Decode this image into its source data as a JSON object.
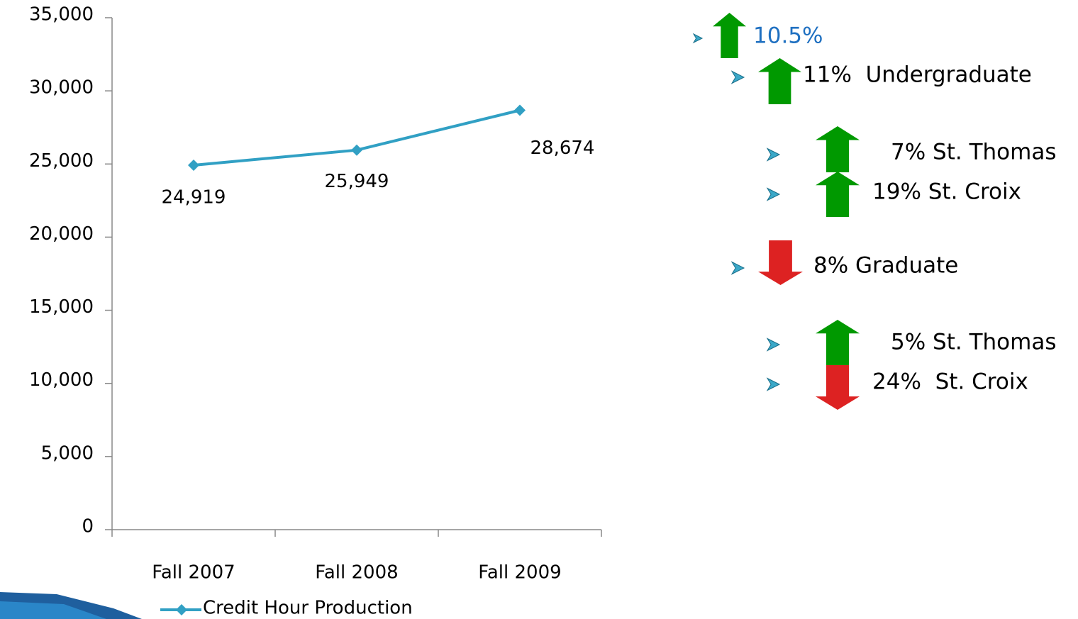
{
  "chart_data": {
    "type": "line",
    "categories": [
      "Fall 2007",
      "Fall 2008",
      "Fall 2009"
    ],
    "series": [
      {
        "name": "Credit Hour Production",
        "color": "#31a0c4",
        "values": [
          24919,
          25949,
          28674
        ],
        "value_labels": [
          "24,919",
          "25,949",
          "28,674"
        ]
      }
    ],
    "ylim": [
      0,
      35000
    ],
    "yticks": [
      0,
      {
        "value": 5000,
        "label": "5,000"
      },
      {
        "value": 10000,
        "label": "10,000"
      },
      {
        "value": 15000,
        "label": "15,000"
      },
      {
        "value": 20000,
        "label": "20,000"
      },
      {
        "value": 25000,
        "label": "25,000"
      },
      {
        "value": 30000,
        "label": "30,000"
      },
      {
        "value": 35000,
        "label": "35,000"
      }
    ],
    "legend": "bottom"
  },
  "bullets": [
    {
      "text": "10.5%",
      "arrow": "up"
    },
    {
      "text": "11%  Undergraduate",
      "arrow": "up"
    },
    {
      "text": "7% St. Thomas",
      "arrow": "up"
    },
    {
      "text": "19% St. Croix",
      "arrow": "up"
    },
    {
      "text": "8% Graduate",
      "arrow": "down"
    },
    {
      "text": "5% St. Thomas",
      "arrow": "up"
    },
    {
      "text": "24%  St. Croix",
      "arrow": "down"
    }
  ]
}
